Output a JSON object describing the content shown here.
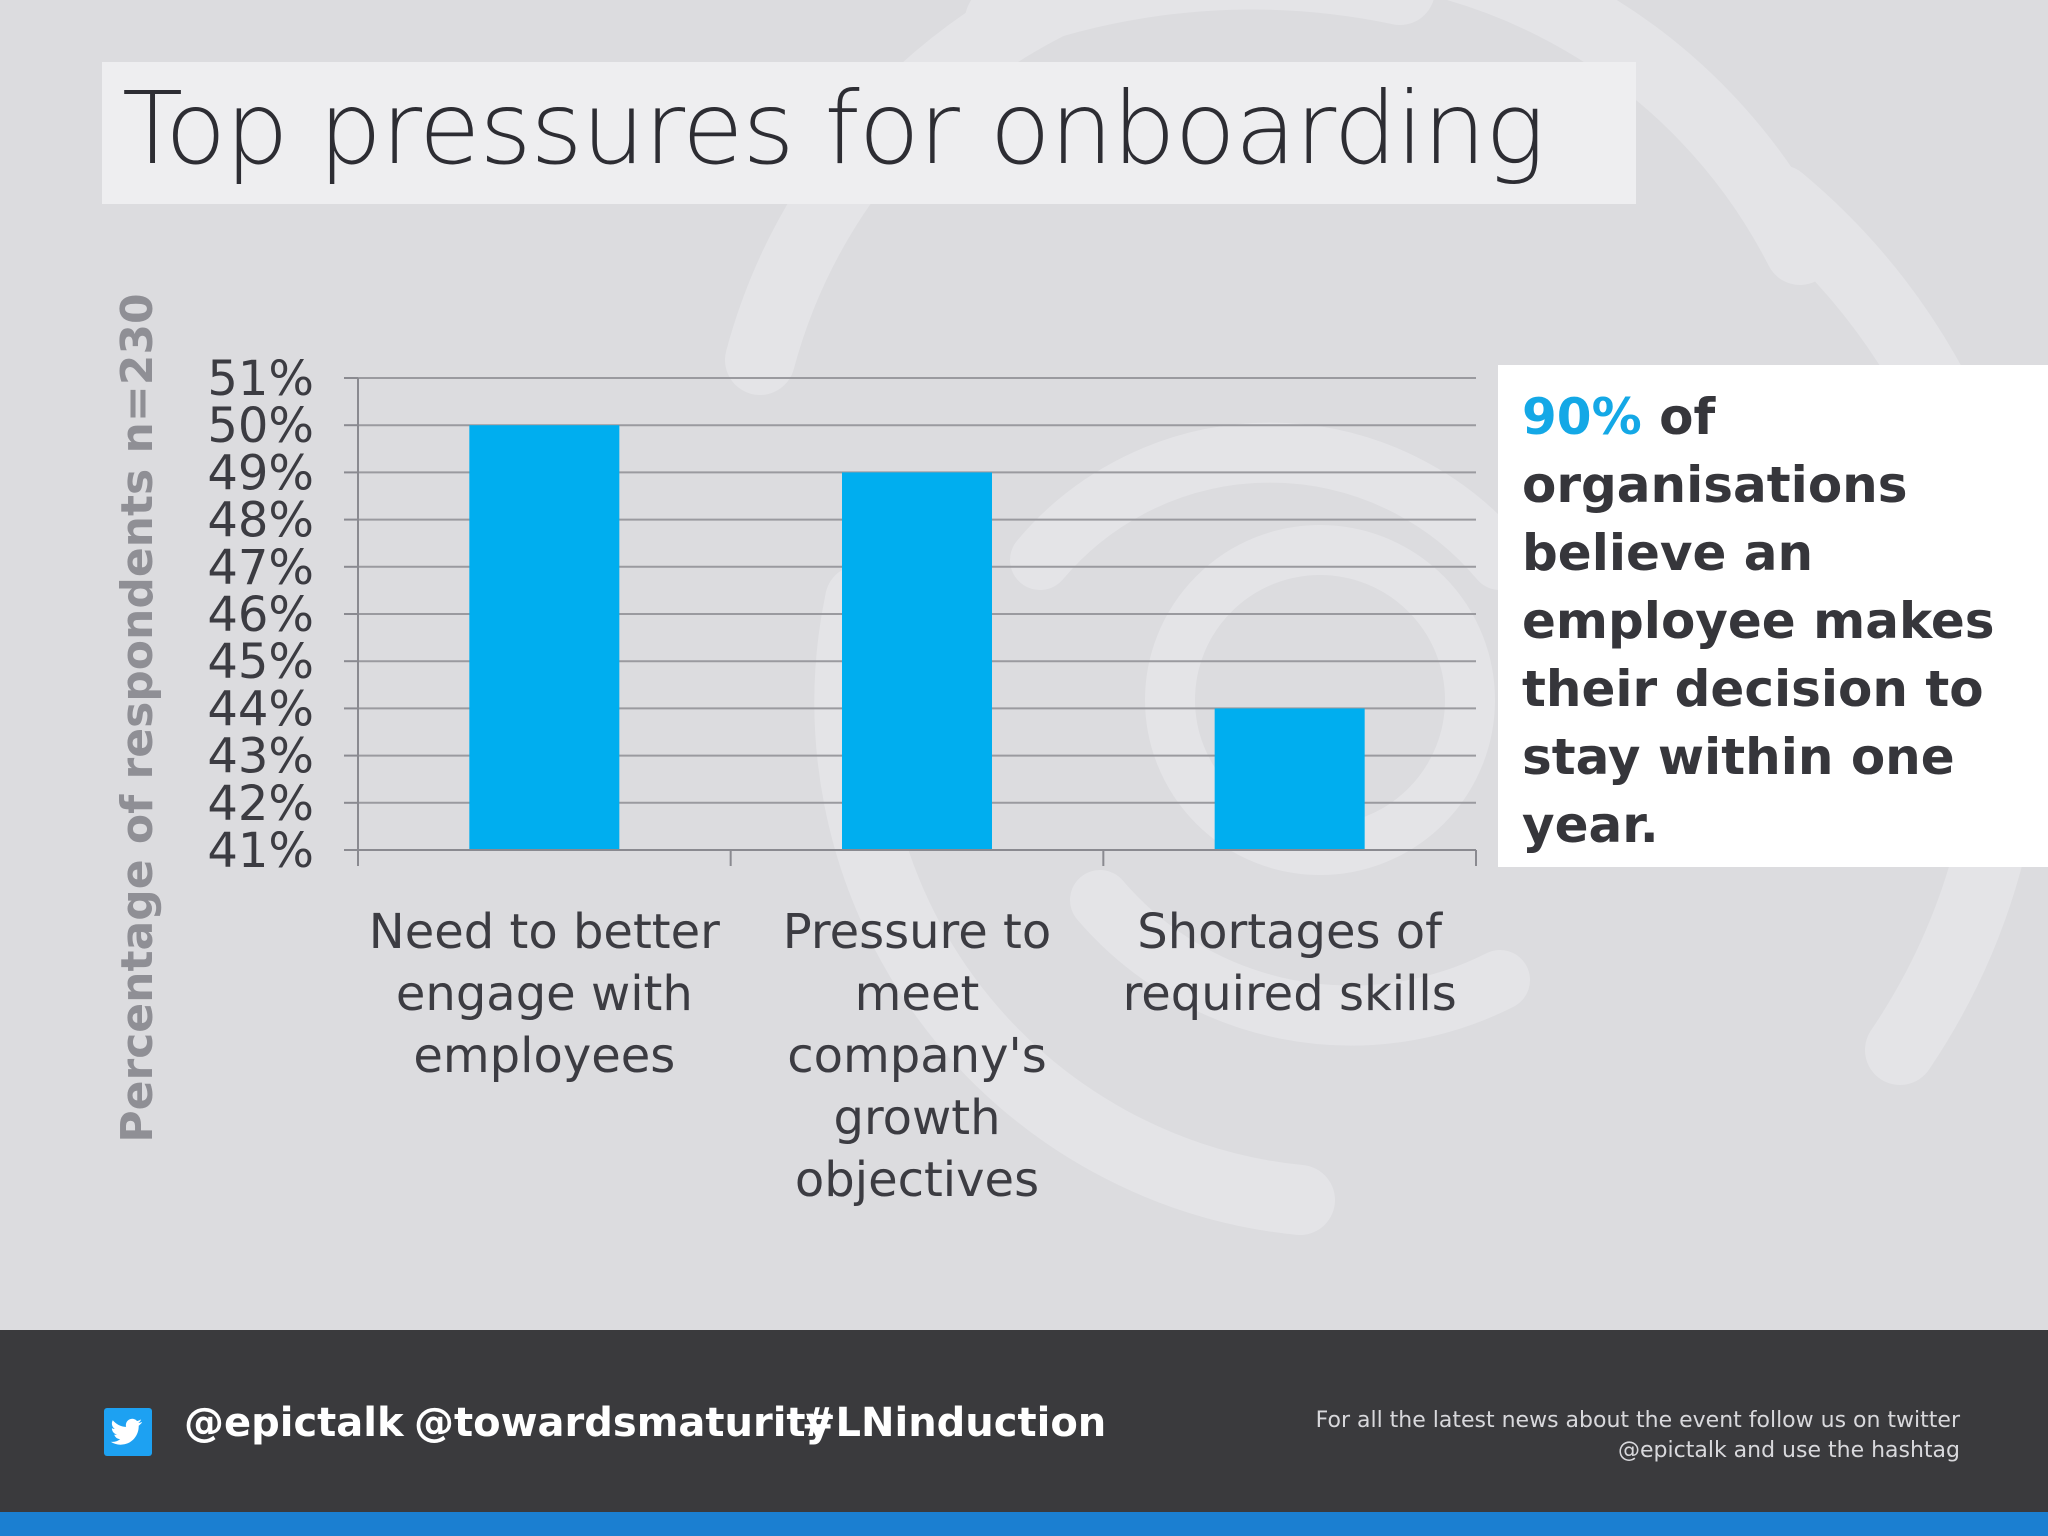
{
  "slide": {
    "title": "Top pressures for onboarding"
  },
  "chart_data": {
    "type": "bar",
    "categories": [
      "Need to better engage with employees",
      "Pressure to meet company's growth objectives",
      "Shortages of required skills"
    ],
    "category_lines": [
      [
        "Need to better",
        "engage with",
        "employees"
      ],
      [
        "Pressure to",
        "meet",
        "company's",
        "growth",
        "objectives"
      ],
      [
        "Shortages of",
        "required skills"
      ]
    ],
    "values": [
      50,
      49,
      44
    ],
    "ylabel": "Percentage of respondents n=230",
    "xlabel": "",
    "ylim": [
      41,
      51
    ],
    "yticks": [
      "41%",
      "42%",
      "43%",
      "44%",
      "45%",
      "46%",
      "47%",
      "48%",
      "49%",
      "50%",
      "51%"
    ],
    "grid": true,
    "bar_color": "#00aeef"
  },
  "callout": {
    "highlight": "90%",
    "text": " of organisations believe an employee makes their decision to stay within one year.",
    "highlight_color": "#14a8e6"
  },
  "footer": {
    "icon": "twitter-icon",
    "handles": [
      "@epictalk",
      "@towardsmaturity",
      "#LNinduction"
    ],
    "note_line1": "For all the latest news about the event follow us on twitter",
    "note_line2": "@epictalk and use the hashtag"
  }
}
